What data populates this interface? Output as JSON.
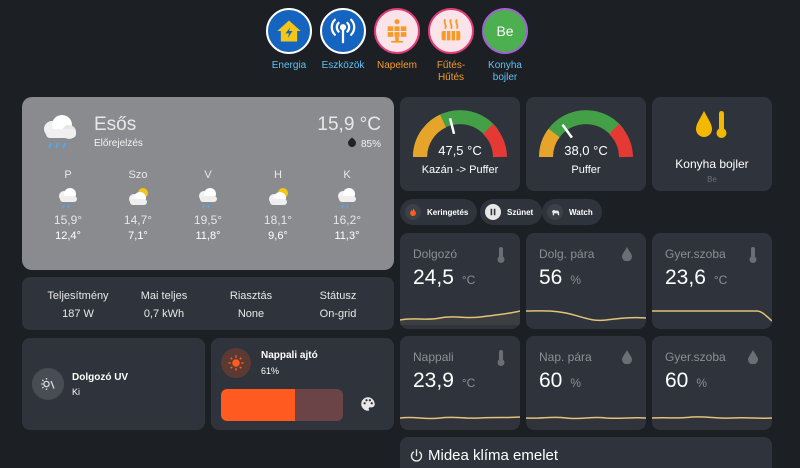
{
  "nav": [
    {
      "label": "Energia",
      "icon": "home-lightning-icon",
      "color": "#5ec3f5"
    },
    {
      "label": "Eszközök",
      "icon": "antenna-icon",
      "color": "#5ec3f5"
    },
    {
      "label": "Napelem",
      "icon": "solar-panel-icon",
      "color": "#f59b2a"
    },
    {
      "label": "Fűtés-Hűtés",
      "line1": "Fűtés-",
      "line2": "Hűtés",
      "icon": "radiator-icon",
      "color": "#f59b2a"
    },
    {
      "label": "Konyha bojler",
      "line1": "Konyha",
      "line2": "bojler",
      "icon_text": "Be",
      "color": "#5ec3f5"
    }
  ],
  "weather": {
    "condition": "Esős",
    "subtitle": "Előrejelzés",
    "temperature": "15,9 °C",
    "humidity": "85%",
    "forecast": [
      {
        "day": "P",
        "high": "15,9°",
        "low": "12,4°",
        "icon": "rain-cloud-icon"
      },
      {
        "day": "Szo",
        "high": "14,7°",
        "low": "7,1°",
        "icon": "partly-cloudy-icon"
      },
      {
        "day": "V",
        "high": "19,5°",
        "low": "11,8°",
        "icon": "rain-cloud-icon"
      },
      {
        "day": "H",
        "high": "18,1°",
        "low": "9,6°",
        "icon": "partly-cloudy-icon"
      },
      {
        "day": "K",
        "high": "16,2°",
        "low": "11,3°",
        "icon": "rain-cloud-icon"
      }
    ]
  },
  "stats": [
    {
      "label": "Teljesítmény",
      "value": "187 W"
    },
    {
      "label": "Mai teljes",
      "value": "0,7 kWh"
    },
    {
      "label": "Riasztás",
      "value": "None"
    },
    {
      "label": "Státusz",
      "value": "On-grid"
    }
  ],
  "uv": {
    "name": "Dolgozó UV",
    "value": "Ki"
  },
  "door": {
    "name": "Nappali ajtó",
    "percent": "61%",
    "level": 0.61
  },
  "gauges": [
    {
      "value": "47,5 °C",
      "label": "Kazán -> Puffer",
      "level": 0.42
    },
    {
      "value": "38,0 °C",
      "label": "Puffer",
      "level": 0.3
    }
  ],
  "boiler": {
    "name": "Konyha bojler",
    "state": "Be"
  },
  "chips": [
    {
      "label": "Keringetés",
      "icon": "fire-icon"
    },
    {
      "label": "Szünet",
      "icon": "pause-icon"
    },
    {
      "label": "Watch",
      "icon": "dog-icon"
    }
  ],
  "sensors": [
    {
      "name": "Dolgozó",
      "value": "24,5",
      "unit": "°C",
      "icon": "thermometer-icon"
    },
    {
      "name": "Dolg. pára",
      "value": "56",
      "unit": "%",
      "icon": "water-drop-icon"
    },
    {
      "name": "Gyer.szoba",
      "value": "23,6",
      "unit": "°C",
      "icon": "thermometer-icon"
    },
    {
      "name": "Nappali",
      "value": "23,9",
      "unit": "°C",
      "icon": "thermometer-icon"
    },
    {
      "name": "Nap. pára",
      "value": "60",
      "unit": "%",
      "icon": "water-drop-icon"
    },
    {
      "name": "Gyer.szoba",
      "value": "60",
      "unit": "%",
      "icon": "water-drop-icon"
    }
  ],
  "climate": {
    "title": "Midea klíma emelet"
  },
  "colors": {
    "accent_blue": "#5ec3f5",
    "accent_orange": "#f59b2a",
    "door_orange": "#ff5a1f",
    "graph_line": "#e3c27a"
  }
}
